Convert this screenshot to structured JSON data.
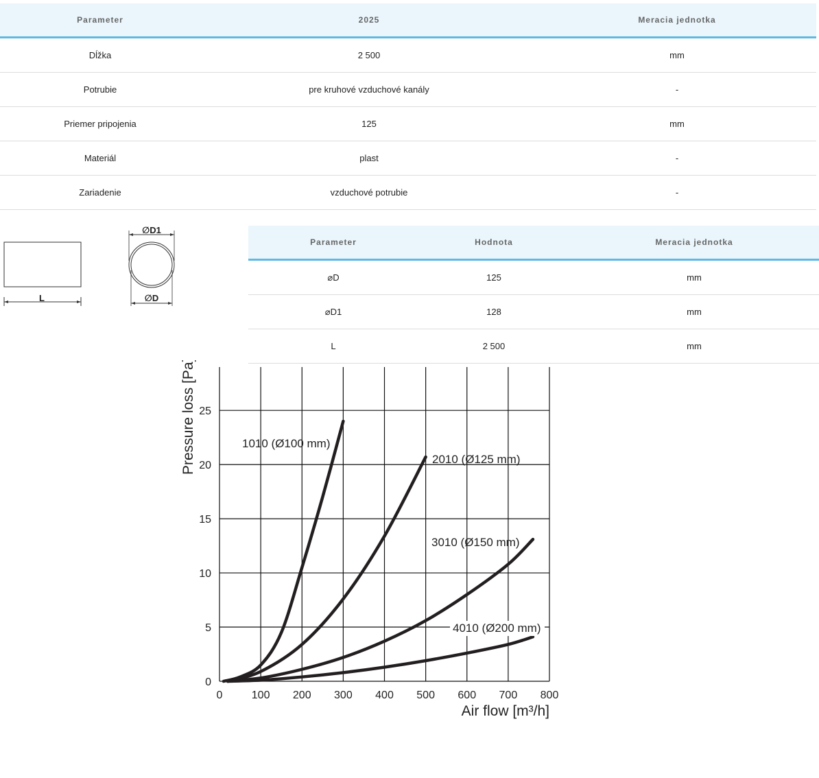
{
  "spec_table": {
    "headers": [
      "Parameter",
      "2025",
      "Meracia jednotka"
    ],
    "rows": [
      [
        "Dĺžka",
        "2 500",
        "mm"
      ],
      [
        "Potrubie",
        "pre kruhové vzduchové kanály",
        "-"
      ],
      [
        "Priemer pripojenia",
        "125",
        "mm"
      ],
      [
        "Materiál",
        "plast",
        "-"
      ],
      [
        "Zariadenie",
        "vzduchové potrubie",
        "-"
      ]
    ]
  },
  "drawing": {
    "label_length": "L",
    "label_outer_diameter": "∅D1",
    "label_inner_diameter": "∅D"
  },
  "dim_table": {
    "headers": [
      "Parameter",
      "Hodnota",
      "Meracia jednotka"
    ],
    "rows": [
      [
        "⌀D",
        "125",
        "mm"
      ],
      [
        "⌀D1",
        "128",
        "mm"
      ],
      [
        "L",
        "2 500",
        "mm"
      ]
    ]
  },
  "chart_data": {
    "type": "line",
    "xlabel": "Air flow [m³/h]",
    "ylabel": "Pressure loss [Pa]",
    "xlim": [
      0,
      800
    ],
    "ylim": [
      0,
      29
    ],
    "x_ticks": [
      0,
      100,
      200,
      300,
      400,
      500,
      600,
      700,
      800
    ],
    "y_ticks": [
      0,
      5,
      10,
      15,
      20,
      25
    ],
    "grid": true,
    "series": [
      {
        "name": "1010 (Ø100 mm)",
        "x": [
          10,
          50,
          100,
          150,
          200,
          250,
          300
        ],
        "y": [
          0,
          0.4,
          1.5,
          4.5,
          10.5,
          17,
          24
        ]
      },
      {
        "name": "2010 (Ø125 mm)",
        "x": [
          20,
          100,
          200,
          300,
          400,
          500
        ],
        "y": [
          0,
          0.9,
          3.4,
          7.6,
          13.4,
          20.7
        ]
      },
      {
        "name": "3010 (Ø150 mm)",
        "x": [
          20,
          100,
          200,
          300,
          400,
          500,
          600,
          700,
          760
        ],
        "y": [
          0,
          0.3,
          1.1,
          2.2,
          3.7,
          5.6,
          8.0,
          10.8,
          13.1
        ]
      },
      {
        "name": "4010 (Ø200 mm)",
        "x": [
          20,
          100,
          200,
          300,
          400,
          500,
          600,
          700,
          760
        ],
        "y": [
          0,
          0.1,
          0.4,
          0.8,
          1.3,
          1.9,
          2.6,
          3.4,
          4.1
        ]
      }
    ]
  }
}
